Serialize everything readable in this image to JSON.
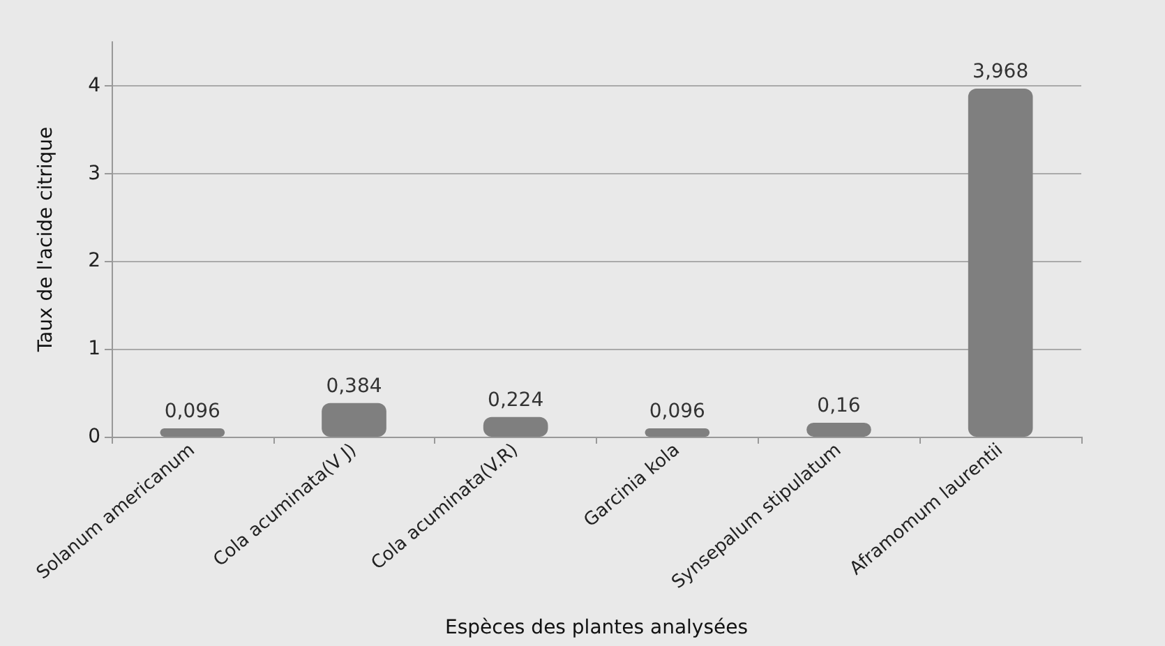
{
  "chart_data": {
    "type": "bar",
    "xlabel": "Espèces des plantes analysées",
    "ylabel": "Taux de l'acide citrique",
    "categories": [
      "Solanum americanum",
      "Cola acuminata(V J)",
      "Cola acuminata(V.R)",
      "Garcinia kola",
      "Synsepalum stipulatum",
      "Aframomum laurentii"
    ],
    "values": [
      0.096,
      0.384,
      0.224,
      0.096,
      0.16,
      3.968
    ],
    "value_labels": [
      "0,096",
      "0,384",
      "0,224",
      "0,096",
      "0,16",
      "3,968"
    ],
    "color": "#7f7f7f",
    "ylim": [
      0,
      4.5
    ],
    "yticks": [
      0,
      1,
      2,
      3,
      4
    ],
    "grid": "y"
  }
}
